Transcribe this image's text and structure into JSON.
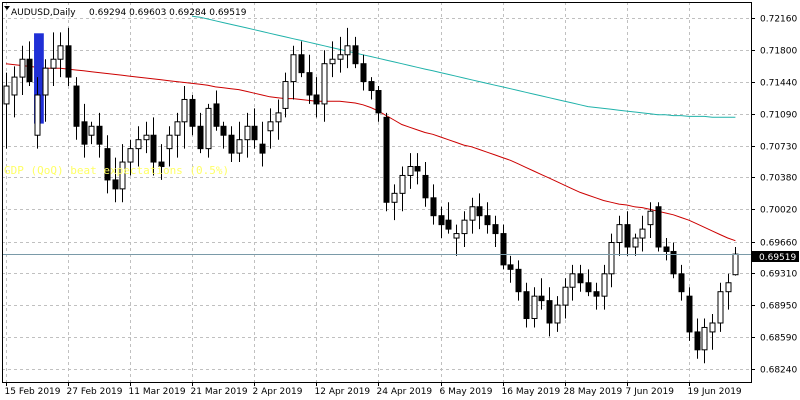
{
  "chart_header": {
    "symbol_timeframe": "AUDUSD,Daily",
    "ohlc": "0.69294 0.69603 0.69284 0.69519"
  },
  "news_overlay": "GDP (QoQ) beat expectations (0.5%)",
  "current_price_label": "0.69519",
  "colors": {
    "background": "#ffffff",
    "grid": "#c0c0c0",
    "bull_body": "#ffffff",
    "bear_body": "#000000",
    "candle_outline": "#000000",
    "ma_fast": "#cc0000",
    "ma_slow": "#20b2aa",
    "price_line": "#7a9aa8",
    "price_box": "#000000",
    "marker": "#1f2fd6",
    "news_text": "#ffff66"
  },
  "chart_data": {
    "type": "candlestick",
    "ylim": [
      0.6809,
      0.7234
    ],
    "y_ticks": [
      "0.72160",
      "0.71800",
      "0.71440",
      "0.71090",
      "0.70730",
      "0.70380",
      "0.70020",
      "0.69660",
      "0.69310",
      "0.68950",
      "0.68590",
      "0.68240"
    ],
    "y_tick_values": [
      0.7216,
      0.718,
      0.7144,
      0.7109,
      0.7073,
      0.7038,
      0.7002,
      0.6966,
      0.6931,
      0.6895,
      0.6859,
      0.6824
    ],
    "x_labels": [
      "15 Feb 2019",
      "27 Feb 2019",
      "11 Mar 2019",
      "21 Mar 2019",
      "2 Apr 2019",
      "12 Apr 2019",
      "24 Apr 2019",
      "6 May 2019",
      "16 May 2019",
      "28 May 2019",
      "7 Jun 2019",
      "19 Jun 2019"
    ],
    "x_label_index": [
      0,
      8,
      16,
      24,
      32,
      40,
      48,
      56,
      64,
      72,
      80,
      88
    ],
    "candles": [
      {
        "o": 0.712,
        "h": 0.7155,
        "l": 0.707,
        "c": 0.714
      },
      {
        "o": 0.713,
        "h": 0.7162,
        "l": 0.7105,
        "c": 0.715
      },
      {
        "o": 0.715,
        "h": 0.7185,
        "l": 0.713,
        "c": 0.717
      },
      {
        "o": 0.717,
        "h": 0.719,
        "l": 0.714,
        "c": 0.7145
      },
      {
        "o": 0.7085,
        "h": 0.715,
        "l": 0.707,
        "c": 0.713
      },
      {
        "o": 0.713,
        "h": 0.717,
        "l": 0.71,
        "c": 0.716
      },
      {
        "o": 0.716,
        "h": 0.72,
        "l": 0.714,
        "c": 0.717
      },
      {
        "o": 0.717,
        "h": 0.72,
        "l": 0.715,
        "c": 0.7185
      },
      {
        "o": 0.7185,
        "h": 0.7205,
        "l": 0.714,
        "c": 0.715
      },
      {
        "o": 0.714,
        "h": 0.715,
        "l": 0.708,
        "c": 0.7095
      },
      {
        "o": 0.71,
        "h": 0.712,
        "l": 0.706,
        "c": 0.7075
      },
      {
        "o": 0.7085,
        "h": 0.71,
        "l": 0.7075,
        "c": 0.7095
      },
      {
        "o": 0.7095,
        "h": 0.711,
        "l": 0.706,
        "c": 0.7075
      },
      {
        "o": 0.707,
        "h": 0.7085,
        "l": 0.702,
        "c": 0.7035
      },
      {
        "o": 0.7035,
        "h": 0.706,
        "l": 0.701,
        "c": 0.7025
      },
      {
        "o": 0.7025,
        "h": 0.7075,
        "l": 0.701,
        "c": 0.7055
      },
      {
        "o": 0.7055,
        "h": 0.708,
        "l": 0.704,
        "c": 0.707
      },
      {
        "o": 0.707,
        "h": 0.7095,
        "l": 0.705,
        "c": 0.708
      },
      {
        "o": 0.708,
        "h": 0.71,
        "l": 0.7065,
        "c": 0.7085
      },
      {
        "o": 0.7085,
        "h": 0.7105,
        "l": 0.704,
        "c": 0.7055
      },
      {
        "o": 0.7055,
        "h": 0.7075,
        "l": 0.7035,
        "c": 0.705
      },
      {
        "o": 0.707,
        "h": 0.7095,
        "l": 0.705,
        "c": 0.7085
      },
      {
        "o": 0.7085,
        "h": 0.711,
        "l": 0.706,
        "c": 0.71
      },
      {
        "o": 0.71,
        "h": 0.714,
        "l": 0.707,
        "c": 0.7125
      },
      {
        "o": 0.7125,
        "h": 0.713,
        "l": 0.7085,
        "c": 0.7095
      },
      {
        "o": 0.7095,
        "h": 0.711,
        "l": 0.7065,
        "c": 0.707
      },
      {
        "o": 0.707,
        "h": 0.712,
        "l": 0.706,
        "c": 0.7115
      },
      {
        "o": 0.712,
        "h": 0.7135,
        "l": 0.709,
        "c": 0.7095
      },
      {
        "o": 0.7095,
        "h": 0.71,
        "l": 0.707,
        "c": 0.7085
      },
      {
        "o": 0.7085,
        "h": 0.7095,
        "l": 0.7055,
        "c": 0.7065
      },
      {
        "o": 0.7065,
        "h": 0.71,
        "l": 0.7055,
        "c": 0.708
      },
      {
        "o": 0.708,
        "h": 0.711,
        "l": 0.706,
        "c": 0.7095
      },
      {
        "o": 0.7095,
        "h": 0.7115,
        "l": 0.707,
        "c": 0.708
      },
      {
        "o": 0.7075,
        "h": 0.71,
        "l": 0.705,
        "c": 0.7065
      },
      {
        "o": 0.709,
        "h": 0.7115,
        "l": 0.707,
        "c": 0.71
      },
      {
        "o": 0.71,
        "h": 0.7125,
        "l": 0.708,
        "c": 0.711
      },
      {
        "o": 0.7115,
        "h": 0.7155,
        "l": 0.7105,
        "c": 0.7145
      },
      {
        "o": 0.7145,
        "h": 0.7185,
        "l": 0.7125,
        "c": 0.7175
      },
      {
        "o": 0.7175,
        "h": 0.719,
        "l": 0.715,
        "c": 0.7155
      },
      {
        "o": 0.7155,
        "h": 0.7175,
        "l": 0.712,
        "c": 0.713
      },
      {
        "o": 0.713,
        "h": 0.715,
        "l": 0.7105,
        "c": 0.712
      },
      {
        "o": 0.712,
        "h": 0.718,
        "l": 0.71,
        "c": 0.7165
      },
      {
        "o": 0.7165,
        "h": 0.719,
        "l": 0.715,
        "c": 0.717
      },
      {
        "o": 0.717,
        "h": 0.7195,
        "l": 0.7155,
        "c": 0.7175
      },
      {
        "o": 0.7175,
        "h": 0.7205,
        "l": 0.716,
        "c": 0.7185
      },
      {
        "o": 0.7185,
        "h": 0.7195,
        "l": 0.716,
        "c": 0.7165
      },
      {
        "o": 0.7165,
        "h": 0.7175,
        "l": 0.7135,
        "c": 0.7145
      },
      {
        "o": 0.7145,
        "h": 0.715,
        "l": 0.7125,
        "c": 0.7135
      },
      {
        "o": 0.7135,
        "h": 0.714,
        "l": 0.71,
        "c": 0.711
      },
      {
        "o": 0.7105,
        "h": 0.711,
        "l": 0.7,
        "c": 0.701
      },
      {
        "o": 0.701,
        "h": 0.703,
        "l": 0.699,
        "c": 0.702
      },
      {
        "o": 0.702,
        "h": 0.705,
        "l": 0.7,
        "c": 0.704
      },
      {
        "o": 0.704,
        "h": 0.7065,
        "l": 0.7025,
        "c": 0.705
      },
      {
        "o": 0.705,
        "h": 0.7065,
        "l": 0.703,
        "c": 0.7045
      },
      {
        "o": 0.704,
        "h": 0.7055,
        "l": 0.7005,
        "c": 0.7015
      },
      {
        "o": 0.7015,
        "h": 0.703,
        "l": 0.6985,
        "c": 0.6995
      },
      {
        "o": 0.6995,
        "h": 0.7005,
        "l": 0.697,
        "c": 0.6985
      },
      {
        "o": 0.699,
        "h": 0.701,
        "l": 0.6975,
        "c": 0.698
      },
      {
        "o": 0.697,
        "h": 0.6985,
        "l": 0.695,
        "c": 0.6975
      },
      {
        "o": 0.6975,
        "h": 0.7,
        "l": 0.696,
        "c": 0.699
      },
      {
        "o": 0.699,
        "h": 0.7015,
        "l": 0.6975,
        "c": 0.7005
      },
      {
        "o": 0.7005,
        "h": 0.702,
        "l": 0.698,
        "c": 0.6995
      },
      {
        "o": 0.6995,
        "h": 0.701,
        "l": 0.6975,
        "c": 0.6985
      },
      {
        "o": 0.6985,
        "h": 0.6995,
        "l": 0.696,
        "c": 0.6975
      },
      {
        "o": 0.6975,
        "h": 0.6985,
        "l": 0.6935,
        "c": 0.694
      },
      {
        "o": 0.694,
        "h": 0.695,
        "l": 0.692,
        "c": 0.6935
      },
      {
        "o": 0.6935,
        "h": 0.6945,
        "l": 0.69,
        "c": 0.691
      },
      {
        "o": 0.691,
        "h": 0.692,
        "l": 0.687,
        "c": 0.688
      },
      {
        "o": 0.688,
        "h": 0.6915,
        "l": 0.687,
        "c": 0.6905
      },
      {
        "o": 0.6905,
        "h": 0.6925,
        "l": 0.689,
        "c": 0.69
      },
      {
        "o": 0.69,
        "h": 0.6915,
        "l": 0.686,
        "c": 0.6875
      },
      {
        "o": 0.6875,
        "h": 0.6905,
        "l": 0.6865,
        "c": 0.6895
      },
      {
        "o": 0.6895,
        "h": 0.6925,
        "l": 0.688,
        "c": 0.6915
      },
      {
        "o": 0.6915,
        "h": 0.694,
        "l": 0.69,
        "c": 0.693
      },
      {
        "o": 0.693,
        "h": 0.694,
        "l": 0.691,
        "c": 0.692
      },
      {
        "o": 0.692,
        "h": 0.6935,
        "l": 0.6905,
        "c": 0.691
      },
      {
        "o": 0.691,
        "h": 0.692,
        "l": 0.689,
        "c": 0.6905
      },
      {
        "o": 0.6905,
        "h": 0.694,
        "l": 0.689,
        "c": 0.693
      },
      {
        "o": 0.693,
        "h": 0.6975,
        "l": 0.6915,
        "c": 0.6965
      },
      {
        "o": 0.6965,
        "h": 0.6995,
        "l": 0.695,
        "c": 0.6985
      },
      {
        "o": 0.6985,
        "h": 0.7,
        "l": 0.695,
        "c": 0.696
      },
      {
        "o": 0.696,
        "h": 0.6975,
        "l": 0.695,
        "c": 0.697
      },
      {
        "o": 0.697,
        "h": 0.6995,
        "l": 0.6955,
        "c": 0.698
      },
      {
        "o": 0.6985,
        "h": 0.701,
        "l": 0.697,
        "c": 0.7
      },
      {
        "o": 0.7005,
        "h": 0.701,
        "l": 0.6955,
        "c": 0.696
      },
      {
        "o": 0.696,
        "h": 0.697,
        "l": 0.6945,
        "c": 0.6955
      },
      {
        "o": 0.6955,
        "h": 0.6965,
        "l": 0.6925,
        "c": 0.693
      },
      {
        "o": 0.693,
        "h": 0.694,
        "l": 0.69,
        "c": 0.691
      },
      {
        "o": 0.6905,
        "h": 0.6915,
        "l": 0.6855,
        "c": 0.6865
      },
      {
        "o": 0.6865,
        "h": 0.688,
        "l": 0.6835,
        "c": 0.6845
      },
      {
        "o": 0.6845,
        "h": 0.688,
        "l": 0.683,
        "c": 0.687
      },
      {
        "o": 0.6865,
        "h": 0.6885,
        "l": 0.6845,
        "c": 0.6875
      },
      {
        "o": 0.6875,
        "h": 0.692,
        "l": 0.6865,
        "c": 0.691
      },
      {
        "o": 0.691,
        "h": 0.693,
        "l": 0.689,
        "c": 0.692
      },
      {
        "o": 0.6929,
        "h": 0.696,
        "l": 0.6928,
        "c": 0.6952
      }
    ],
    "ma_fast": [
      0.7165,
      0.7164,
      0.7163,
      0.7162,
      0.7161,
      0.716,
      0.716,
      0.716,
      0.7159,
      0.7158,
      0.7157,
      0.7156,
      0.7155,
      0.7154,
      0.7153,
      0.7152,
      0.7151,
      0.715,
      0.7149,
      0.7148,
      0.7147,
      0.7146,
      0.7145,
      0.7144,
      0.7143,
      0.7142,
      0.7141,
      0.7139,
      0.7138,
      0.7137,
      0.7136,
      0.7134,
      0.7132,
      0.713,
      0.7128,
      0.7127,
      0.7126,
      0.7126,
      0.7125,
      0.7124,
      0.7123,
      0.7123,
      0.7123,
      0.7123,
      0.7122,
      0.7121,
      0.7119,
      0.7116,
      0.7112,
      0.7107,
      0.7102,
      0.7097,
      0.7094,
      0.7091,
      0.7088,
      0.7086,
      0.7083,
      0.708,
      0.7077,
      0.7074,
      0.7072,
      0.7069,
      0.7066,
      0.7063,
      0.706,
      0.7057,
      0.7053,
      0.7049,
      0.7045,
      0.7041,
      0.7037,
      0.7033,
      0.7029,
      0.7025,
      0.7021,
      0.7018,
      0.7015,
      0.7012,
      0.701,
      0.7008,
      0.7007,
      0.7005,
      0.7004,
      0.7002,
      0.7,
      0.6998,
      0.6996,
      0.6993,
      0.699,
      0.6986,
      0.6982,
      0.6978,
      0.6974,
      0.697,
      0.6967
    ],
    "ma_slow_start_index": 24,
    "ma_slow": [
      0.7218,
      0.7217,
      0.7215,
      0.7213,
      0.7211,
      0.7209,
      0.7207,
      0.7205,
      0.7203,
      0.7201,
      0.7199,
      0.7197,
      0.7195,
      0.7193,
      0.7191,
      0.7189,
      0.7187,
      0.7185,
      0.7183,
      0.7181,
      0.7179,
      0.7177,
      0.7175,
      0.7173,
      0.7171,
      0.7169,
      0.7167,
      0.7165,
      0.7163,
      0.7161,
      0.7159,
      0.7157,
      0.7155,
      0.7153,
      0.7151,
      0.7149,
      0.7147,
      0.7145,
      0.7143,
      0.7141,
      0.7139,
      0.7137,
      0.7135,
      0.7133,
      0.7131,
      0.7129,
      0.7127,
      0.7125,
      0.7123,
      0.7121,
      0.7119,
      0.7117,
      0.7116,
      0.7115,
      0.7114,
      0.7113,
      0.7112,
      0.7111,
      0.711,
      0.7109,
      0.7108,
      0.7108,
      0.7107,
      0.7107,
      0.7106,
      0.7106,
      0.7106,
      0.7105,
      0.7105,
      0.7105,
      0.7105
    ],
    "current_price": 0.69519,
    "event_marker": {
      "start_index": 4,
      "top": 0.7199,
      "bottom": 0.7098
    }
  }
}
